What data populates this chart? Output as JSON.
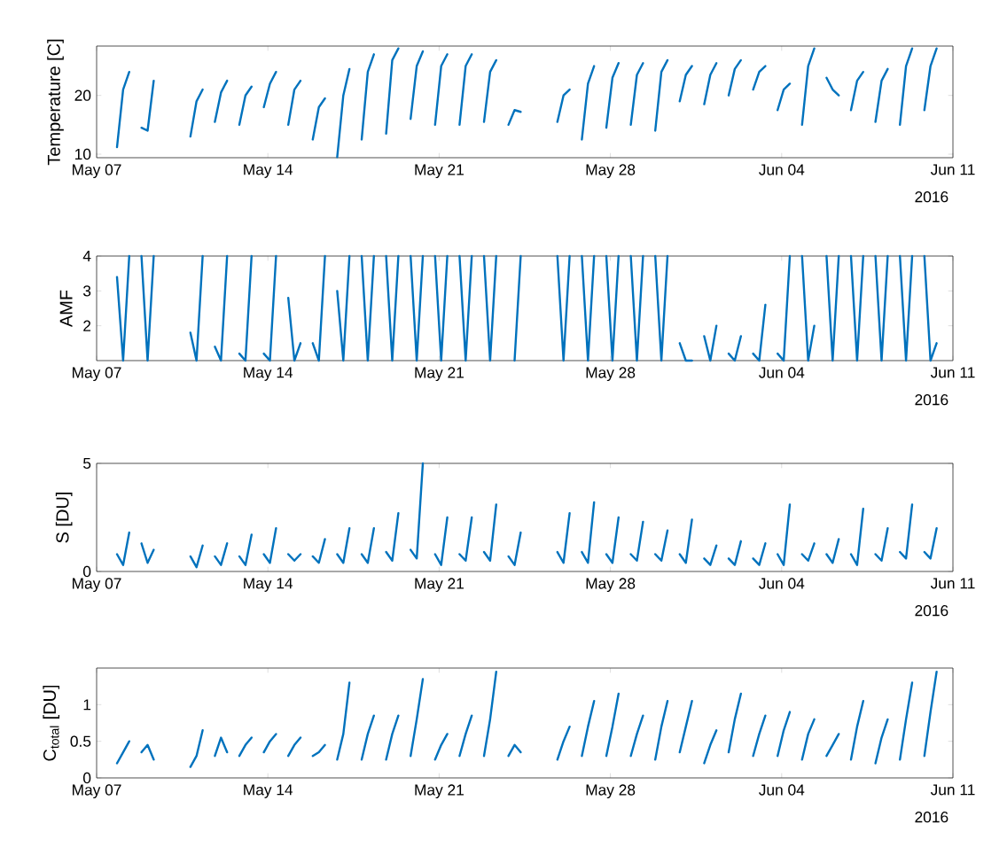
{
  "chart_data": [
    {
      "type": "line",
      "ylabel": "Temperature [C]",
      "color": "#0072bd",
      "xlim": [
        "2016-05-07",
        "2016-06-11"
      ],
      "xticks": [
        {
          "value": "2016-05-07",
          "label": "May 07"
        },
        {
          "value": "2016-05-14",
          "label": "May 14"
        },
        {
          "value": "2016-05-21",
          "label": "May 21"
        },
        {
          "value": "2016-05-28",
          "label": "May 28"
        },
        {
          "value": "2016-06-04",
          "label": "Jun 04"
        },
        {
          "value": "2016-06-11",
          "label": "Jun 11"
        }
      ],
      "ylim": [
        9.4,
        28.4
      ],
      "yticks": [
        10,
        20
      ],
      "annotations": [
        "2016"
      ],
      "x": [
        "2016-05-07T20:00",
        "2016-05-08T02:00",
        "2016-05-08T08:00",
        "2016-05-08T14:00",
        "2016-05-08T20:00",
        "2016-05-09T02:00",
        "2016-05-09T08:00",
        "2016-05-09T14:00",
        "2016-05-10T20:00",
        "2016-05-11T02:00",
        "2016-05-11T08:00",
        "2016-05-11T14:00",
        "2016-05-11T20:00",
        "2016-05-12T02:00",
        "2016-05-12T08:00",
        "2016-05-12T14:00",
        "2016-05-12T20:00",
        "2016-05-13T02:00",
        "2016-05-13T08:00",
        "2016-05-13T14:00",
        "2016-05-13T20:00",
        "2016-05-14T02:00",
        "2016-05-14T08:00",
        "2016-05-14T14:00",
        "2016-05-14T20:00",
        "2016-05-15T02:00",
        "2016-05-15T08:00",
        "2016-05-15T14:00",
        "2016-05-15T20:00",
        "2016-05-16T02:00",
        "2016-05-16T08:00",
        "2016-05-16T14:00",
        "2016-05-16T20:00",
        "2016-05-17T02:00",
        "2016-05-17T08:00",
        "2016-05-17T14:00",
        "2016-05-17T20:00",
        "2016-05-18T02:00",
        "2016-05-18T08:00",
        "2016-05-18T14:00",
        "2016-05-18T20:00",
        "2016-05-19T02:00",
        "2016-05-19T08:00",
        "2016-05-19T14:00",
        "2016-05-19T20:00",
        "2016-05-20T02:00",
        "2016-05-20T08:00",
        "2016-05-20T14:00",
        "2016-05-20T20:00",
        "2016-05-21T02:00",
        "2016-05-21T08:00",
        "2016-05-21T14:00",
        "2016-05-21T20:00",
        "2016-05-22T02:00",
        "2016-05-22T08:00",
        "2016-05-22T14:00",
        "2016-05-22T20:00",
        "2016-05-23T02:00",
        "2016-05-23T08:00",
        "2016-05-23T14:00",
        "2016-05-23T20:00",
        "2016-05-24T02:00",
        "2016-05-24T08:00",
        "2016-05-24T14:00",
        "2016-05-25T20:00",
        "2016-05-26T02:00",
        "2016-05-26T08:00",
        "2016-05-26T14:00",
        "2016-05-26T20:00",
        "2016-05-27T02:00",
        "2016-05-27T08:00",
        "2016-05-27T14:00",
        "2016-05-27T20:00",
        "2016-05-28T02:00",
        "2016-05-28T08:00",
        "2016-05-28T14:00",
        "2016-05-28T20:00",
        "2016-05-29T02:00",
        "2016-05-29T08:00",
        "2016-05-29T14:00",
        "2016-05-29T20:00",
        "2016-05-30T02:00",
        "2016-05-30T08:00",
        "2016-05-30T14:00",
        "2016-05-30T20:00",
        "2016-05-31T02:00",
        "2016-05-31T08:00",
        "2016-05-31T14:00",
        "2016-05-31T20:00",
        "2016-06-01T02:00",
        "2016-06-01T08:00",
        "2016-06-01T14:00",
        "2016-06-01T20:00",
        "2016-06-02T02:00",
        "2016-06-02T08:00",
        "2016-06-02T14:00",
        "2016-06-02T20:00",
        "2016-06-03T02:00",
        "2016-06-03T08:00",
        "2016-06-03T14:00",
        "2016-06-03T20:00",
        "2016-06-04T02:00",
        "2016-06-04T08:00",
        "2016-06-04T14:00",
        "2016-06-04T20:00",
        "2016-06-05T02:00",
        "2016-06-05T08:00",
        "2016-06-05T14:00",
        "2016-06-05T20:00",
        "2016-06-06T02:00",
        "2016-06-06T08:00",
        "2016-06-06T14:00",
        "2016-06-06T20:00",
        "2016-06-07T02:00",
        "2016-06-07T08:00",
        "2016-06-07T14:00",
        "2016-06-07T20:00",
        "2016-06-08T02:00",
        "2016-06-08T08:00",
        "2016-06-08T14:00",
        "2016-06-08T20:00",
        "2016-06-09T02:00",
        "2016-06-09T08:00",
        "2016-06-09T14:00",
        "2016-06-09T20:00",
        "2016-06-10T02:00",
        "2016-06-10T08:00"
      ],
      "values": [
        11.2,
        21,
        24,
        null,
        14.5,
        14,
        22.5,
        null,
        13,
        19,
        21,
        null,
        15.5,
        20.5,
        22.5,
        null,
        15,
        20,
        21.5,
        null,
        18,
        22,
        24,
        null,
        15,
        21,
        22.5,
        null,
        12.5,
        18,
        19.5,
        null,
        9.5,
        20,
        24.5,
        null,
        12.5,
        24,
        27,
        null,
        13.5,
        26,
        28,
        null,
        16,
        25,
        27.5,
        null,
        15,
        25,
        27,
        null,
        15,
        25,
        27,
        null,
        15.5,
        24,
        26,
        null,
        15,
        17.5,
        17.2,
        null,
        15.5,
        20,
        21,
        null,
        12.5,
        22,
        25,
        null,
        14.5,
        23,
        25.5,
        null,
        15,
        23.5,
        25.5,
        null,
        14,
        24,
        26,
        null,
        19,
        23.5,
        25,
        null,
        18.5,
        23.5,
        25.5,
        null,
        20,
        24.5,
        26,
        null,
        21,
        24,
        25,
        null,
        17.5,
        21,
        22,
        null,
        15,
        25,
        28,
        null,
        23,
        21,
        20,
        null,
        17.5,
        22.5,
        24,
        null,
        15.5,
        22.5,
        24.5,
        null,
        15,
        25,
        28,
        null,
        17.5,
        25,
        28
      ]
    },
    {
      "type": "line",
      "ylabel": "AMF",
      "color": "#0072bd",
      "xlim": [
        "2016-05-07",
        "2016-06-11"
      ],
      "xticks": [
        {
          "value": "2016-05-07",
          "label": "May 07"
        },
        {
          "value": "2016-05-14",
          "label": "May 14"
        },
        {
          "value": "2016-05-21",
          "label": "May 21"
        },
        {
          "value": "2016-05-28",
          "label": "May 28"
        },
        {
          "value": "2016-06-04",
          "label": "Jun 04"
        },
        {
          "value": "2016-06-11",
          "label": "Jun 11"
        }
      ],
      "ylim": [
        1,
        4
      ],
      "yticks": [
        2,
        3,
        4
      ],
      "annotations": [
        "2016"
      ],
      "x": [
        "2016-05-07T20:00",
        "2016-05-08T02:00",
        "2016-05-08T08:00",
        "2016-05-08T14:00",
        "2016-05-08T20:00",
        "2016-05-09T02:00",
        "2016-05-09T08:00",
        "2016-05-09T14:00",
        "2016-05-10T20:00",
        "2016-05-11T02:00",
        "2016-05-11T08:00",
        "2016-05-11T14:00",
        "2016-05-11T20:00",
        "2016-05-12T02:00",
        "2016-05-12T08:00",
        "2016-05-12T14:00",
        "2016-05-12T20:00",
        "2016-05-13T02:00",
        "2016-05-13T08:00",
        "2016-05-13T14:00",
        "2016-05-13T20:00",
        "2016-05-14T02:00",
        "2016-05-14T08:00",
        "2016-05-14T14:00",
        "2016-05-14T20:00",
        "2016-05-15T02:00",
        "2016-05-15T08:00",
        "2016-05-15T14:00",
        "2016-05-15T20:00",
        "2016-05-16T02:00",
        "2016-05-16T08:00",
        "2016-05-16T14:00",
        "2016-05-16T20:00",
        "2016-05-17T02:00",
        "2016-05-17T08:00",
        "2016-05-17T14:00",
        "2016-05-17T20:00",
        "2016-05-18T02:00",
        "2016-05-18T08:00",
        "2016-05-18T14:00",
        "2016-05-18T20:00",
        "2016-05-19T02:00",
        "2016-05-19T08:00",
        "2016-05-19T14:00",
        "2016-05-19T20:00",
        "2016-05-20T02:00",
        "2016-05-20T08:00",
        "2016-05-20T14:00",
        "2016-05-20T20:00",
        "2016-05-21T02:00",
        "2016-05-21T08:00",
        "2016-05-21T14:00",
        "2016-05-21T20:00",
        "2016-05-22T02:00",
        "2016-05-22T08:00",
        "2016-05-22T14:00",
        "2016-05-22T20:00",
        "2016-05-23T02:00",
        "2016-05-23T08:00",
        "2016-05-23T14:00",
        "2016-05-23T20:00",
        "2016-05-24T02:00",
        "2016-05-24T08:00",
        "2016-05-24T14:00",
        "2016-05-25T20:00",
        "2016-05-26T02:00",
        "2016-05-26T08:00",
        "2016-05-26T14:00",
        "2016-05-26T20:00",
        "2016-05-27T02:00",
        "2016-05-27T08:00",
        "2016-05-27T14:00",
        "2016-05-27T20:00",
        "2016-05-28T02:00",
        "2016-05-28T08:00",
        "2016-05-28T14:00",
        "2016-05-28T20:00",
        "2016-05-29T02:00",
        "2016-05-29T08:00",
        "2016-05-29T14:00",
        "2016-05-29T20:00",
        "2016-05-30T02:00",
        "2016-05-30T08:00",
        "2016-05-30T14:00",
        "2016-05-30T20:00",
        "2016-05-31T02:00",
        "2016-05-31T08:00",
        "2016-05-31T14:00",
        "2016-05-31T20:00",
        "2016-06-01T02:00",
        "2016-06-01T08:00",
        "2016-06-01T14:00",
        "2016-06-01T20:00",
        "2016-06-02T02:00",
        "2016-06-02T08:00",
        "2016-06-02T14:00",
        "2016-06-02T20:00",
        "2016-06-03T02:00",
        "2016-06-03T08:00",
        "2016-06-03T14:00",
        "2016-06-03T20:00",
        "2016-06-04T02:00",
        "2016-06-04T08:00",
        "2016-06-04T14:00",
        "2016-06-04T20:00",
        "2016-06-05T02:00",
        "2016-06-05T08:00",
        "2016-06-05T14:00",
        "2016-06-05T20:00",
        "2016-06-06T02:00",
        "2016-06-06T08:00",
        "2016-06-06T14:00",
        "2016-06-06T20:00",
        "2016-06-07T02:00",
        "2016-06-07T08:00",
        "2016-06-07T14:00",
        "2016-06-07T20:00",
        "2016-06-08T02:00",
        "2016-06-08T08:00",
        "2016-06-08T14:00",
        "2016-06-08T20:00",
        "2016-06-09T02:00",
        "2016-06-09T08:00",
        "2016-06-09T14:00",
        "2016-06-09T20:00",
        "2016-06-10T02:00",
        "2016-06-10T08:00"
      ],
      "values": [
        3.4,
        1,
        4,
        null,
        4,
        1,
        4,
        null,
        1.8,
        1,
        4,
        null,
        1.4,
        1,
        4,
        null,
        1.2,
        1,
        4,
        null,
        1.2,
        1,
        4,
        null,
        2.8,
        1,
        1.5,
        null,
        1.5,
        1,
        4,
        null,
        3,
        1,
        4,
        null,
        4,
        1,
        4,
        null,
        4,
        1,
        4,
        null,
        4,
        1,
        4,
        null,
        4,
        1,
        4,
        null,
        4,
        1,
        4,
        null,
        4,
        1,
        4,
        null,
        null,
        1,
        4,
        null,
        4,
        1,
        4,
        null,
        4,
        1,
        4,
        null,
        4,
        1,
        4,
        null,
        4,
        1,
        4,
        null,
        4,
        1,
        4,
        null,
        1.5,
        1,
        1,
        null,
        1.7,
        1,
        2,
        null,
        1.2,
        1,
        1.7,
        null,
        1.2,
        1,
        2.6,
        null,
        1.2,
        1,
        4,
        null,
        4,
        1,
        2,
        null,
        4,
        1,
        4,
        null,
        4,
        1,
        4,
        null,
        4,
        1,
        4,
        null,
        4,
        1,
        4,
        null,
        4,
        1,
        1.5
      ]
    },
    {
      "type": "line",
      "ylabel": "S [DU]",
      "color": "#0072bd",
      "xlim": [
        "2016-05-07",
        "2016-06-11"
      ],
      "xticks": [
        {
          "value": "2016-05-07",
          "label": "May 07"
        },
        {
          "value": "2016-05-14",
          "label": "May 14"
        },
        {
          "value": "2016-05-21",
          "label": "May 21"
        },
        {
          "value": "2016-05-28",
          "label": "May 28"
        },
        {
          "value": "2016-06-04",
          "label": "Jun 04"
        },
        {
          "value": "2016-06-11",
          "label": "Jun 11"
        }
      ],
      "ylim": [
        0,
        5
      ],
      "yticks": [
        0,
        5
      ],
      "annotations": [
        "2016"
      ],
      "x": [
        "2016-05-07T20:00",
        "2016-05-08T02:00",
        "2016-05-08T08:00",
        "2016-05-08T14:00",
        "2016-05-08T20:00",
        "2016-05-09T02:00",
        "2016-05-09T08:00",
        "2016-05-09T14:00",
        "2016-05-10T20:00",
        "2016-05-11T02:00",
        "2016-05-11T08:00",
        "2016-05-11T14:00",
        "2016-05-11T20:00",
        "2016-05-12T02:00",
        "2016-05-12T08:00",
        "2016-05-12T14:00",
        "2016-05-12T20:00",
        "2016-05-13T02:00",
        "2016-05-13T08:00",
        "2016-05-13T14:00",
        "2016-05-13T20:00",
        "2016-05-14T02:00",
        "2016-05-14T08:00",
        "2016-05-14T14:00",
        "2016-05-14T20:00",
        "2016-05-15T02:00",
        "2016-05-15T08:00",
        "2016-05-15T14:00",
        "2016-05-15T20:00",
        "2016-05-16T02:00",
        "2016-05-16T08:00",
        "2016-05-16T14:00",
        "2016-05-16T20:00",
        "2016-05-17T02:00",
        "2016-05-17T08:00",
        "2016-05-17T14:00",
        "2016-05-17T20:00",
        "2016-05-18T02:00",
        "2016-05-18T08:00",
        "2016-05-18T14:00",
        "2016-05-18T20:00",
        "2016-05-19T02:00",
        "2016-05-19T08:00",
        "2016-05-19T14:00",
        "2016-05-19T20:00",
        "2016-05-20T02:00",
        "2016-05-20T08:00",
        "2016-05-20T14:00",
        "2016-05-20T20:00",
        "2016-05-21T02:00",
        "2016-05-21T08:00",
        "2016-05-21T14:00",
        "2016-05-21T20:00",
        "2016-05-22T02:00",
        "2016-05-22T08:00",
        "2016-05-22T14:00",
        "2016-05-22T20:00",
        "2016-05-23T02:00",
        "2016-05-23T08:00",
        "2016-05-23T14:00",
        "2016-05-23T20:00",
        "2016-05-24T02:00",
        "2016-05-24T08:00",
        "2016-05-24T14:00",
        "2016-05-25T20:00",
        "2016-05-26T02:00",
        "2016-05-26T08:00",
        "2016-05-26T14:00",
        "2016-05-26T20:00",
        "2016-05-27T02:00",
        "2016-05-27T08:00",
        "2016-05-27T14:00",
        "2016-05-27T20:00",
        "2016-05-28T02:00",
        "2016-05-28T08:00",
        "2016-05-28T14:00",
        "2016-05-28T20:00",
        "2016-05-29T02:00",
        "2016-05-29T08:00",
        "2016-05-29T14:00",
        "2016-05-29T20:00",
        "2016-05-30T02:00",
        "2016-05-30T08:00",
        "2016-05-30T14:00",
        "2016-05-30T20:00",
        "2016-05-31T02:00",
        "2016-05-31T08:00",
        "2016-05-31T14:00",
        "2016-05-31T20:00",
        "2016-06-01T02:00",
        "2016-06-01T08:00",
        "2016-06-01T14:00",
        "2016-06-01T20:00",
        "2016-06-02T02:00",
        "2016-06-02T08:00",
        "2016-06-02T14:00",
        "2016-06-02T20:00",
        "2016-06-03T02:00",
        "2016-06-03T08:00",
        "2016-06-03T14:00",
        "2016-06-03T20:00",
        "2016-06-04T02:00",
        "2016-06-04T08:00",
        "2016-06-04T14:00",
        "2016-06-04T20:00",
        "2016-06-05T02:00",
        "2016-06-05T08:00",
        "2016-06-05T14:00",
        "2016-06-05T20:00",
        "2016-06-06T02:00",
        "2016-06-06T08:00",
        "2016-06-06T14:00",
        "2016-06-06T20:00",
        "2016-06-07T02:00",
        "2016-06-07T08:00",
        "2016-06-07T14:00",
        "2016-06-07T20:00",
        "2016-06-08T02:00",
        "2016-06-08T08:00",
        "2016-06-08T14:00",
        "2016-06-08T20:00",
        "2016-06-09T02:00",
        "2016-06-09T08:00",
        "2016-06-09T14:00",
        "2016-06-09T20:00",
        "2016-06-10T02:00",
        "2016-06-10T08:00"
      ],
      "values": [
        0.8,
        0.3,
        1.8,
        null,
        1.3,
        0.4,
        1.0,
        null,
        0.7,
        0.2,
        1.2,
        null,
        0.7,
        0.3,
        1.3,
        null,
        0.7,
        0.3,
        1.7,
        null,
        0.8,
        0.4,
        2.0,
        null,
        0.8,
        0.5,
        0.8,
        null,
        0.7,
        0.4,
        1.5,
        null,
        0.8,
        0.4,
        2.0,
        null,
        0.8,
        0.4,
        2.0,
        null,
        0.9,
        0.5,
        2.7,
        null,
        1.0,
        0.6,
        5.0,
        null,
        0.8,
        0.3,
        2.5,
        null,
        0.8,
        0.5,
        2.5,
        null,
        0.9,
        0.5,
        3.1,
        null,
        0.7,
        0.3,
        1.8,
        null,
        0.9,
        0.4,
        2.7,
        null,
        0.9,
        0.4,
        3.2,
        null,
        0.8,
        0.4,
        2.5,
        null,
        0.8,
        0.5,
        2.3,
        null,
        0.8,
        0.5,
        1.9,
        null,
        0.8,
        0.4,
        2.4,
        null,
        0.6,
        0.3,
        1.2,
        null,
        0.6,
        0.3,
        1.4,
        null,
        0.6,
        0.3,
        1.3,
        null,
        0.8,
        0.3,
        3.1,
        null,
        0.8,
        0.5,
        1.3,
        null,
        0.8,
        0.4,
        1.5,
        null,
        0.8,
        0.3,
        2.9,
        null,
        0.8,
        0.5,
        2.0,
        null,
        0.9,
        0.6,
        3.1,
        null,
        0.9,
        0.6,
        2.0
      ]
    },
    {
      "type": "line",
      "ylabel": "C$_{total}$ [DU]",
      "color": "#0072bd",
      "xlim": [
        "2016-05-07",
        "2016-06-11"
      ],
      "xticks": [
        {
          "value": "2016-05-07",
          "label": "May 07"
        },
        {
          "value": "2016-05-14",
          "label": "May 14"
        },
        {
          "value": "2016-05-21",
          "label": "May 21"
        },
        {
          "value": "2016-05-28",
          "label": "May 28"
        },
        {
          "value": "2016-06-04",
          "label": "Jun 04"
        },
        {
          "value": "2016-06-11",
          "label": "Jun 11"
        }
      ],
      "ylim": [
        0,
        1.5
      ],
      "yticks": [
        0,
        0.5,
        1
      ],
      "annotations": [
        "2016"
      ],
      "x": [
        "2016-05-07T20:00",
        "2016-05-08T02:00",
        "2016-05-08T08:00",
        "2016-05-08T14:00",
        "2016-05-08T20:00",
        "2016-05-09T02:00",
        "2016-05-09T08:00",
        "2016-05-09T14:00",
        "2016-05-10T20:00",
        "2016-05-11T02:00",
        "2016-05-11T08:00",
        "2016-05-11T14:00",
        "2016-05-11T20:00",
        "2016-05-12T02:00",
        "2016-05-12T08:00",
        "2016-05-12T14:00",
        "2016-05-12T20:00",
        "2016-05-13T02:00",
        "2016-05-13T08:00",
        "2016-05-13T14:00",
        "2016-05-13T20:00",
        "2016-05-14T02:00",
        "2016-05-14T08:00",
        "2016-05-14T14:00",
        "2016-05-14T20:00",
        "2016-05-15T02:00",
        "2016-05-15T08:00",
        "2016-05-15T14:00",
        "2016-05-15T20:00",
        "2016-05-16T02:00",
        "2016-05-16T08:00",
        "2016-05-16T14:00",
        "2016-05-16T20:00",
        "2016-05-17T02:00",
        "2016-05-17T08:00",
        "2016-05-17T14:00",
        "2016-05-17T20:00",
        "2016-05-18T02:00",
        "2016-05-18T08:00",
        "2016-05-18T14:00",
        "2016-05-18T20:00",
        "2016-05-19T02:00",
        "2016-05-19T08:00",
        "2016-05-19T14:00",
        "2016-05-19T20:00",
        "2016-05-20T02:00",
        "2016-05-20T08:00",
        "2016-05-20T14:00",
        "2016-05-20T20:00",
        "2016-05-21T02:00",
        "2016-05-21T08:00",
        "2016-05-21T14:00",
        "2016-05-21T20:00",
        "2016-05-22T02:00",
        "2016-05-22T08:00",
        "2016-05-22T14:00",
        "2016-05-22T20:00",
        "2016-05-23T02:00",
        "2016-05-23T08:00",
        "2016-05-23T14:00",
        "2016-05-23T20:00",
        "2016-05-24T02:00",
        "2016-05-24T08:00",
        "2016-05-24T14:00",
        "2016-05-25T20:00",
        "2016-05-26T02:00",
        "2016-05-26T08:00",
        "2016-05-26T14:00",
        "2016-05-26T20:00",
        "2016-05-27T02:00",
        "2016-05-27T08:00",
        "2016-05-27T14:00",
        "2016-05-27T20:00",
        "2016-05-28T02:00",
        "2016-05-28T08:00",
        "2016-05-28T14:00",
        "2016-05-28T20:00",
        "2016-05-29T02:00",
        "2016-05-29T08:00",
        "2016-05-29T14:00",
        "2016-05-29T20:00",
        "2016-05-30T02:00",
        "2016-05-30T08:00",
        "2016-05-30T14:00",
        "2016-05-30T20:00",
        "2016-05-31T02:00",
        "2016-05-31T08:00",
        "2016-05-31T14:00",
        "2016-05-31T20:00",
        "2016-06-01T02:00",
        "2016-06-01T08:00",
        "2016-06-01T14:00",
        "2016-06-01T20:00",
        "2016-06-02T02:00",
        "2016-06-02T08:00",
        "2016-06-02T14:00",
        "2016-06-02T20:00",
        "2016-06-03T02:00",
        "2016-06-03T08:00",
        "2016-06-03T14:00",
        "2016-06-03T20:00",
        "2016-06-04T02:00",
        "2016-06-04T08:00",
        "2016-06-04T14:00",
        "2016-06-04T20:00",
        "2016-06-05T02:00",
        "2016-06-05T08:00",
        "2016-06-05T14:00",
        "2016-06-05T20:00",
        "2016-06-06T02:00",
        "2016-06-06T08:00",
        "2016-06-06T14:00",
        "2016-06-06T20:00",
        "2016-06-07T02:00",
        "2016-06-07T08:00",
        "2016-06-07T14:00",
        "2016-06-07T20:00",
        "2016-06-08T02:00",
        "2016-06-08T08:00",
        "2016-06-08T14:00",
        "2016-06-08T20:00",
        "2016-06-09T02:00",
        "2016-06-09T08:00",
        "2016-06-09T14:00",
        "2016-06-09T20:00",
        "2016-06-10T02:00",
        "2016-06-10T08:00"
      ],
      "values": [
        0.2,
        0.35,
        0.5,
        null,
        0.35,
        0.45,
        0.25,
        null,
        0.15,
        0.3,
        0.65,
        null,
        0.3,
        0.55,
        0.35,
        null,
        0.3,
        0.45,
        0.55,
        null,
        0.35,
        0.5,
        0.6,
        null,
        0.3,
        0.45,
        0.55,
        null,
        0.3,
        0.35,
        0.45,
        null,
        0.25,
        0.6,
        1.3,
        null,
        0.25,
        0.6,
        0.85,
        null,
        0.25,
        0.6,
        0.85,
        null,
        0.3,
        0.8,
        1.35,
        null,
        0.25,
        0.45,
        0.6,
        null,
        0.3,
        0.6,
        0.85,
        null,
        0.3,
        0.8,
        1.45,
        null,
        0.3,
        0.45,
        0.35,
        null,
        0.25,
        0.5,
        0.7,
        null,
        0.3,
        0.7,
        1.05,
        null,
        0.3,
        0.7,
        1.15,
        null,
        0.3,
        0.6,
        0.85,
        null,
        0.25,
        0.7,
        1.05,
        null,
        0.35,
        0.7,
        1.05,
        null,
        0.2,
        0.45,
        0.65,
        null,
        0.35,
        0.8,
        1.15,
        null,
        0.3,
        0.6,
        0.85,
        null,
        0.3,
        0.65,
        0.9,
        null,
        0.25,
        0.6,
        0.8,
        null,
        0.3,
        0.45,
        0.6,
        null,
        0.25,
        0.7,
        1.05,
        null,
        0.2,
        0.55,
        0.8,
        null,
        0.25,
        0.8,
        1.3,
        null,
        0.3,
        0.9,
        1.45
      ]
    }
  ]
}
